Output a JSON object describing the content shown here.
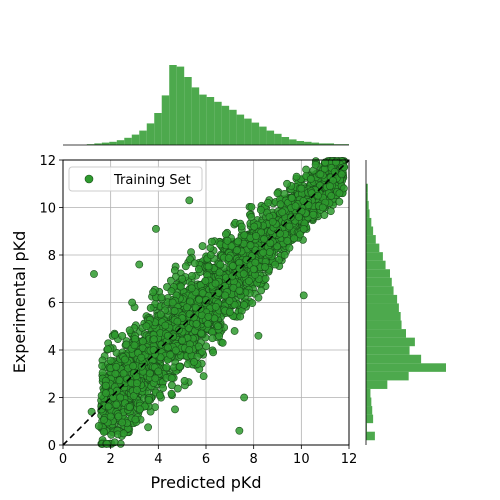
{
  "chart_data": {
    "type": "scatter",
    "xlabel": "Predicted pKd",
    "ylabel": "Experimental pKd",
    "xlim": [
      0,
      12
    ],
    "ylim": [
      0,
      12
    ],
    "xticks": [
      "0",
      "2",
      "4",
      "6",
      "8",
      "10",
      "12"
    ],
    "yticks": [
      "0",
      "2",
      "4",
      "6",
      "8",
      "10",
      "12"
    ],
    "grid": true,
    "legend": {
      "position": "top-left",
      "entries": [
        "Training Set"
      ]
    },
    "reference_line": {
      "style": "dashed",
      "color": "#000000",
      "from": [
        0,
        0
      ],
      "to": [
        12,
        12
      ]
    },
    "series": [
      {
        "name": "Training Set",
        "color": "#2e9a2e",
        "edgecolor": "#1a4d1a",
        "points": [
          [
            1.2,
            1.4
          ],
          [
            1.5,
            0.8
          ],
          [
            1.8,
            2.5
          ],
          [
            2.0,
            1.2
          ],
          [
            2.2,
            3.0
          ],
          [
            2.4,
            2.0
          ],
          [
            2.6,
            3.6
          ],
          [
            2.8,
            1.6
          ],
          [
            3.0,
            4.2
          ],
          [
            3.1,
            2.6
          ],
          [
            3.3,
            3.3
          ],
          [
            3.5,
            5.0
          ],
          [
            3.6,
            1.9
          ],
          [
            3.8,
            4.0
          ],
          [
            4.0,
            3.1
          ],
          [
            4.1,
            5.5
          ],
          [
            4.2,
            2.4
          ],
          [
            4.4,
            4.6
          ],
          [
            4.5,
            3.8
          ],
          [
            4.6,
            6.0
          ],
          [
            4.7,
            1.5
          ],
          [
            4.8,
            5.2
          ],
          [
            4.9,
            3.3
          ],
          [
            5.0,
            4.4
          ],
          [
            5.0,
            7.0
          ],
          [
            5.1,
            2.7
          ],
          [
            5.2,
            5.8
          ],
          [
            5.3,
            4.0
          ],
          [
            5.4,
            6.6
          ],
          [
            5.5,
            3.5
          ],
          [
            5.6,
            5.1
          ],
          [
            5.7,
            7.4
          ],
          [
            5.8,
            4.7
          ],
          [
            5.9,
            2.9
          ],
          [
            6.0,
            6.1
          ],
          [
            6.1,
            5.4
          ],
          [
            6.2,
            8.0
          ],
          [
            6.3,
            3.9
          ],
          [
            6.4,
            6.8
          ],
          [
            6.5,
            5.0
          ],
          [
            6.6,
            7.6
          ],
          [
            6.7,
            4.3
          ],
          [
            6.8,
            6.3
          ],
          [
            6.9,
            8.6
          ],
          [
            7.0,
            5.6
          ],
          [
            7.1,
            7.1
          ],
          [
            7.2,
            4.8
          ],
          [
            7.3,
            8.2
          ],
          [
            7.4,
            6.5
          ],
          [
            7.5,
            9.2
          ],
          [
            7.6,
            5.9
          ],
          [
            7.7,
            7.8
          ],
          [
            7.8,
            6.9
          ],
          [
            7.9,
            9.6
          ],
          [
            8.0,
            7.4
          ],
          [
            8.1,
            8.8
          ],
          [
            8.2,
            6.2
          ],
          [
            8.3,
            9.9
          ],
          [
            8.4,
            8.1
          ],
          [
            8.5,
            7.0
          ],
          [
            8.6,
            10.2
          ],
          [
            8.7,
            8.5
          ],
          [
            8.8,
            9.4
          ],
          [
            8.9,
            7.6
          ],
          [
            9.0,
            10.6
          ],
          [
            9.1,
            8.9
          ],
          [
            9.2,
            9.8
          ],
          [
            9.3,
            8.0
          ],
          [
            9.4,
            11.0
          ],
          [
            9.5,
            9.2
          ],
          [
            9.6,
            10.4
          ],
          [
            9.7,
            8.7
          ],
          [
            9.8,
            11.3
          ],
          [
            9.9,
            9.6
          ],
          [
            10.0,
            10.8
          ],
          [
            10.1,
            9.1
          ],
          [
            10.2,
            11.6
          ],
          [
            10.3,
            10.1
          ],
          [
            10.4,
            11.2
          ],
          [
            10.5,
            9.7
          ],
          [
            10.6,
            11.8
          ],
          [
            10.7,
            10.5
          ],
          [
            10.8,
            11.4
          ],
          [
            10.9,
            10.0
          ],
          [
            11.0,
            11.9
          ],
          [
            11.2,
            10.9
          ],
          [
            11.4,
            11.5
          ],
          [
            11.6,
            10.6
          ],
          [
            11.8,
            11.7
          ],
          [
            1.3,
            7.2
          ],
          [
            3.2,
            7.6
          ],
          [
            3.9,
            9.1
          ],
          [
            5.3,
            10.3
          ],
          [
            7.6,
            2.0
          ],
          [
            7.4,
            0.6
          ],
          [
            10.1,
            6.3
          ],
          [
            8.2,
            4.6
          ],
          [
            2.9,
            6.0
          ]
        ]
      }
    ],
    "x_histogram": {
      "edges": [
        1.0,
        12.0
      ],
      "counts": [
        1,
        2,
        3,
        4,
        6,
        9,
        13,
        18,
        27,
        40,
        62,
        100,
        98,
        85,
        72,
        63,
        60,
        54,
        49,
        44,
        38,
        33,
        28,
        23,
        18,
        14,
        10,
        7,
        5,
        4,
        3,
        2,
        2,
        1,
        1
      ]
    },
    "y_histogram": {
      "edges": [
        0.2,
        11.0
      ],
      "counts": [
        10,
        1,
        8,
        7,
        6,
        5,
        24,
        48,
        90,
        62,
        49,
        55,
        45,
        40,
        39,
        37,
        35,
        31,
        29,
        27,
        22,
        19,
        15,
        11,
        8,
        6,
        4,
        3,
        2,
        2
      ]
    }
  }
}
